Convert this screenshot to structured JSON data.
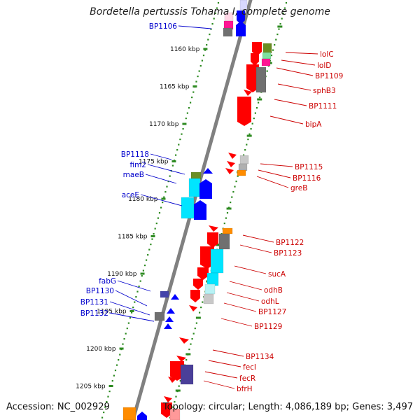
{
  "title": "Bordetella pertussis Tohama I, complete genome",
  "footer": {
    "accession": "Accession: NC_002929",
    "topology": "Topology: circular; Length: 4,086,189 bp; Genes: 3,497"
  },
  "scale_unit": "kbp",
  "ticks": [
    1160,
    1165,
    1170,
    1175,
    1180,
    1185,
    1190,
    1195,
    1200,
    1205
  ],
  "colors": {
    "backbone": "#808080",
    "tick_dots": "#2e8b22",
    "left_label": "#0000cc",
    "right_label": "#cc0000",
    "red": "#ff0000",
    "blue": "#0000ff",
    "cyan": "#00e5ff",
    "gray": "#707070",
    "light_gray": "#c8c8c8",
    "olive": "#6b8e23",
    "magenta": "#ff1493",
    "orange": "#ff8c00",
    "navy": "#333399",
    "pink": "#ff9999"
  },
  "left_labels": [
    "BP1106",
    "BP1118",
    "fim2",
    "maeB",
    "aceE",
    "fabG",
    "BP1130",
    "BP1131",
    "BP1132"
  ],
  "right_labels": [
    "lolC",
    "lolD",
    "BP1109",
    "sphB3",
    "BP1111",
    "bipA",
    "BP1115",
    "BP1116",
    "greB",
    "BP1122",
    "BP1123",
    "sucA",
    "odhB",
    "odhL",
    "BP1127",
    "BP1129",
    "BP1134",
    "fecI",
    "fecR",
    "bfrH"
  ]
}
